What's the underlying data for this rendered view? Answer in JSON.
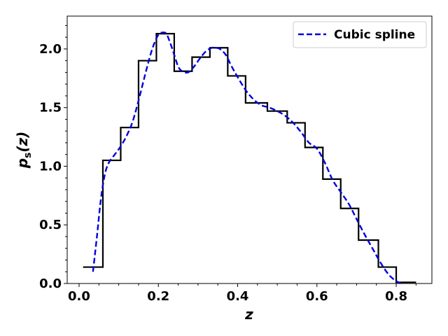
{
  "chart_data": {
    "type": "line",
    "title": "",
    "xlabel": "z",
    "ylabel_main": "p",
    "ylabel_sub": "s",
    "ylabel_args": "(z)",
    "xlim": [
      -0.03,
      0.89
    ],
    "ylim": [
      0.0,
      2.28
    ],
    "xticks": [
      0.0,
      0.2,
      0.4,
      0.6,
      0.8
    ],
    "xtick_labels": [
      "0.0",
      "0.2",
      "0.4",
      "0.6",
      "0.8"
    ],
    "yticks": [
      0.0,
      0.5,
      1.0,
      1.5,
      2.0
    ],
    "ytick_labels": [
      "0.0",
      "0.5",
      "1.0",
      "1.5",
      "2.0"
    ],
    "grid": false,
    "legend_position": "top-right",
    "histogram": {
      "edges": [
        0.01,
        0.06,
        0.105,
        0.15,
        0.195,
        0.24,
        0.285,
        0.33,
        0.375,
        0.42,
        0.475,
        0.525,
        0.57,
        0.615,
        0.66,
        0.705,
        0.755,
        0.8,
        0.85
      ],
      "values": [
        0.14,
        1.05,
        1.33,
        1.9,
        2.13,
        1.81,
        1.93,
        2.01,
        1.77,
        1.54,
        1.47,
        1.37,
        1.16,
        0.89,
        0.64,
        0.37,
        0.14,
        0.01
      ],
      "color": "#000000"
    },
    "series": [
      {
        "name": "Cubic spline",
        "style": "dashed",
        "color": "#0000dd",
        "x": [
          0.035,
          0.045,
          0.055,
          0.065,
          0.075,
          0.09,
          0.105,
          0.12,
          0.135,
          0.15,
          0.165,
          0.18,
          0.19,
          0.2,
          0.21,
          0.22,
          0.23,
          0.24,
          0.25,
          0.26,
          0.275,
          0.29,
          0.305,
          0.32,
          0.335,
          0.345,
          0.355,
          0.37,
          0.385,
          0.4,
          0.42,
          0.44,
          0.46,
          0.48,
          0.5,
          0.52,
          0.54,
          0.56,
          0.58,
          0.6,
          0.62,
          0.64,
          0.66,
          0.68,
          0.7,
          0.72,
          0.74,
          0.76,
          0.78,
          0.8,
          0.815
        ],
        "y": [
          0.1,
          0.4,
          0.72,
          0.93,
          1.03,
          1.1,
          1.17,
          1.26,
          1.38,
          1.56,
          1.76,
          1.95,
          2.05,
          2.12,
          2.14,
          2.13,
          2.05,
          1.95,
          1.85,
          1.81,
          1.8,
          1.85,
          1.92,
          1.98,
          2.01,
          2.01,
          2.0,
          1.95,
          1.85,
          1.76,
          1.65,
          1.57,
          1.52,
          1.5,
          1.47,
          1.43,
          1.37,
          1.29,
          1.2,
          1.15,
          1.03,
          0.88,
          0.78,
          0.68,
          0.55,
          0.42,
          0.3,
          0.18,
          0.08,
          0.02,
          0.0
        ]
      }
    ]
  }
}
